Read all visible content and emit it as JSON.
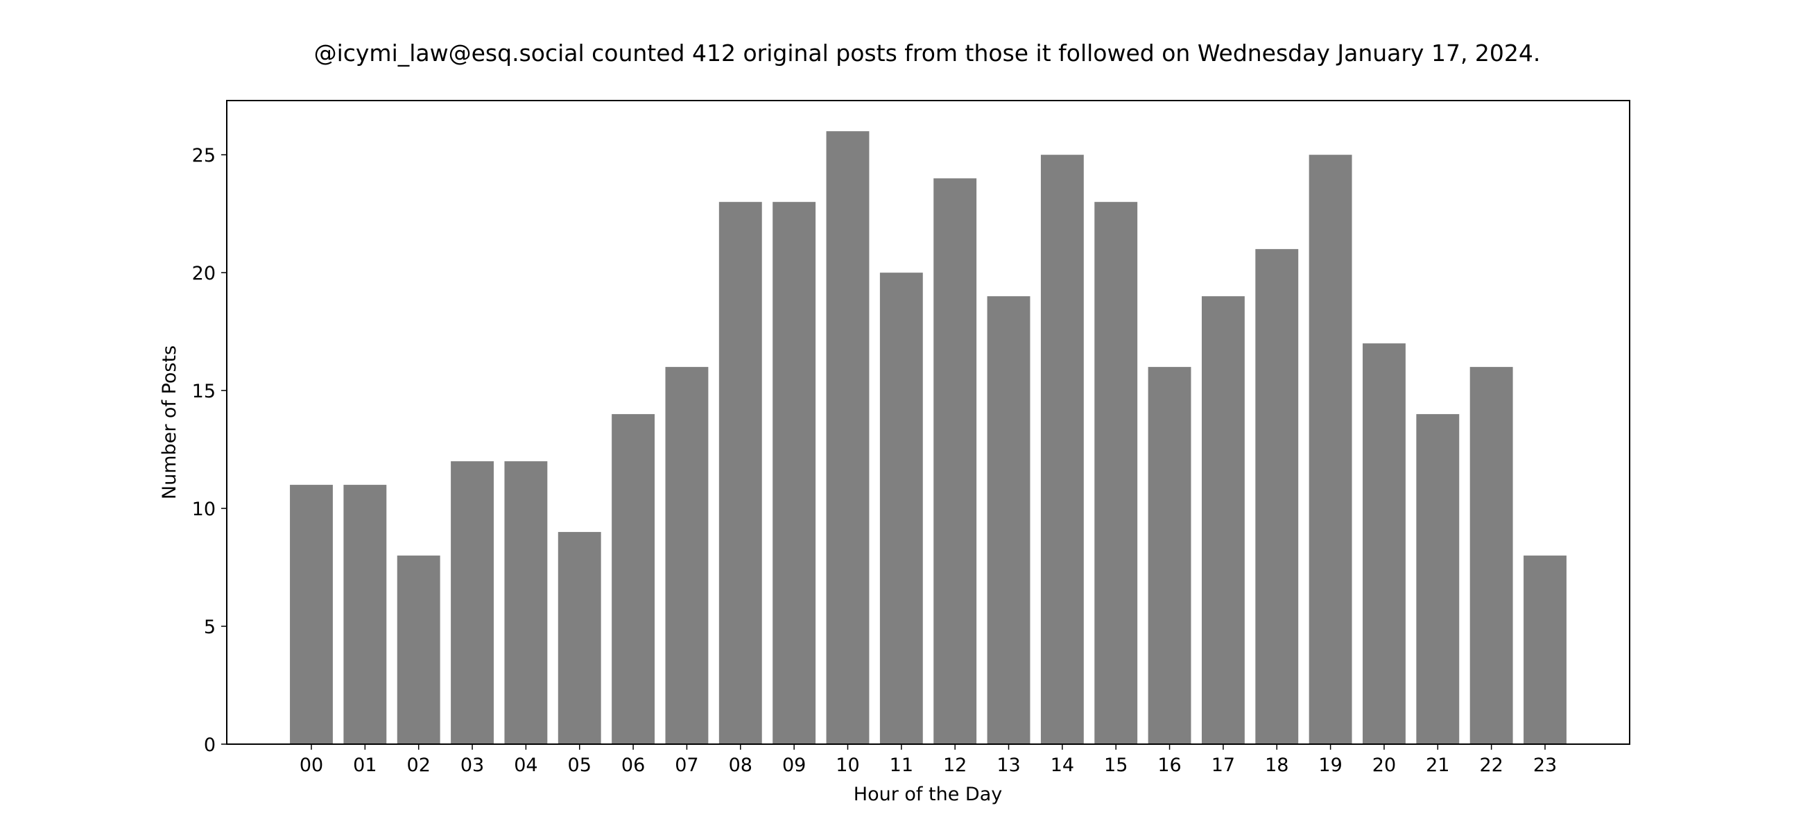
{
  "chart_data": {
    "type": "bar",
    "title": "@icymi_law@esq.social counted 412 original posts from those it followed on Wednesday January 17, 2024.",
    "xlabel": "Hour of the Day",
    "ylabel": "Number of Posts",
    "categories": [
      "00",
      "01",
      "02",
      "03",
      "04",
      "05",
      "06",
      "07",
      "08",
      "09",
      "10",
      "11",
      "12",
      "13",
      "14",
      "15",
      "16",
      "17",
      "18",
      "19",
      "20",
      "21",
      "22",
      "23"
    ],
    "values": [
      11,
      11,
      8,
      12,
      12,
      9,
      14,
      16,
      23,
      23,
      26,
      20,
      24,
      19,
      25,
      23,
      16,
      19,
      21,
      25,
      17,
      14,
      16,
      8
    ],
    "ylim": [
      0,
      27.3
    ],
    "yticks": [
      0,
      5,
      10,
      15,
      20,
      25
    ],
    "grid": false,
    "legend": "none",
    "bar_color": "#808080"
  }
}
